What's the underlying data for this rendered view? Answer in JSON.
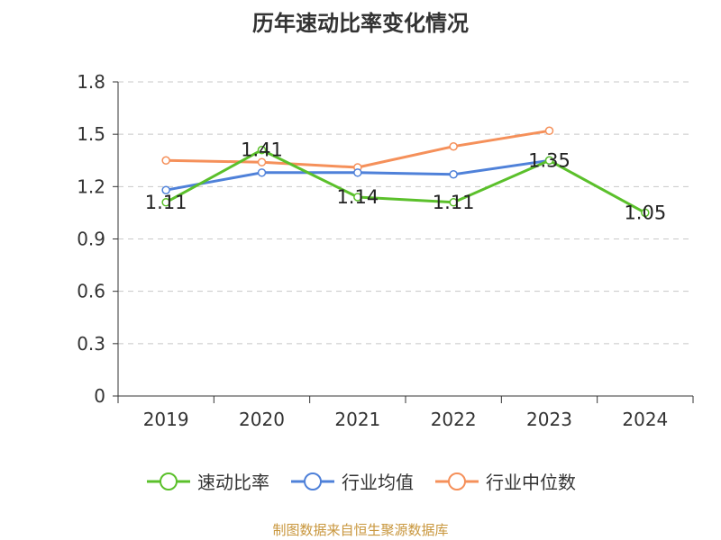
{
  "chart_data": {
    "type": "line",
    "title": "历年速动比率变化情况",
    "categories": [
      "2019",
      "2020",
      "2021",
      "2022",
      "2023",
      "2024"
    ],
    "ylim": [
      0,
      1.8
    ],
    "yticks": [
      "0",
      "0.3",
      "0.6",
      "0.9",
      "1.2",
      "1.5",
      "1.8"
    ],
    "grid": true,
    "legend_position": "bottom",
    "series": [
      {
        "name": "速动比率",
        "color": "#5bc02b",
        "values": [
          1.11,
          1.41,
          1.14,
          1.11,
          1.35,
          1.05
        ],
        "labels": [
          "1.11",
          "1.41",
          "1.14",
          "1.11",
          "1.35",
          "1.05"
        ]
      },
      {
        "name": "行业均值",
        "color": "#4f81d9",
        "values": [
          1.18,
          1.28,
          1.28,
          1.27,
          1.35,
          null
        ]
      },
      {
        "name": "行业中位数",
        "color": "#f5905a",
        "values": [
          1.35,
          1.34,
          1.31,
          1.43,
          1.52,
          null
        ]
      }
    ]
  },
  "source": "制图数据来自恒生聚源数据库"
}
